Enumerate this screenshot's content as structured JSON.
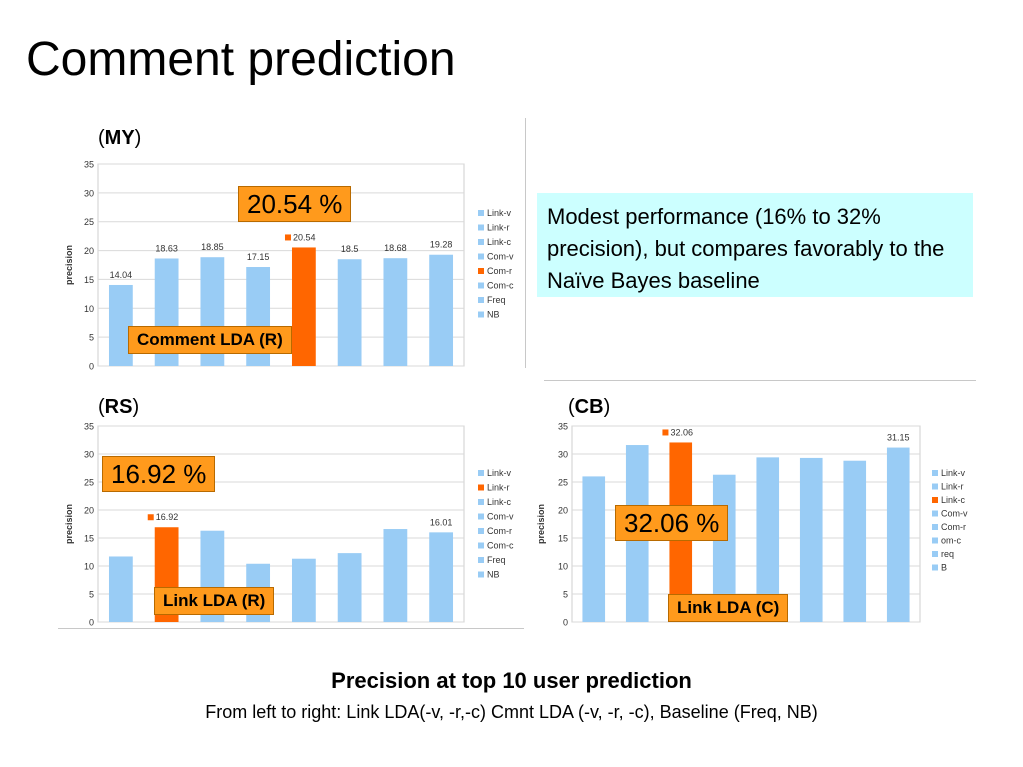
{
  "page": {
    "title": "Comment prediction",
    "callout_note": "Modest performance (16% to 32% precision), but compares favorably to the Naïve Bayes baseline",
    "caption_main": "Precision at top 10 user prediction",
    "caption_sub": "From left to right: Link LDA(-v, -r,-c) Cmnt LDA (-v, -r, -c), Baseline (Freq, NB)"
  },
  "colors": {
    "blue": "#99ccf5",
    "orange": "#ff6600",
    "grid": "#d9d9d9"
  },
  "panels": [
    {
      "key": "MY",
      "paren_open": "(",
      "paren_close": ")",
      "highlight_value": "20.54 %",
      "tag": "Comment LDA (R)"
    },
    {
      "key": "RS",
      "paren_open": "(",
      "paren_close": ")",
      "highlight_value": "16.92 %",
      "tag": "Link LDA (R)"
    },
    {
      "key": "CB",
      "paren_open": "(",
      "paren_close": ")",
      "highlight_value": "32.06 %",
      "tag": "Link LDA (C)"
    }
  ],
  "chart_data": [
    {
      "type": "bar",
      "panel": "MY",
      "ylabel": "precision",
      "ylim": [
        0,
        35
      ],
      "yticks": [
        0,
        5,
        10,
        15,
        20,
        25,
        30,
        35
      ],
      "grid": true,
      "legend_position": "right",
      "categories": [
        "Link-v",
        "Link-r",
        "Link-c",
        "Com-v",
        "Com-r",
        "Com-c",
        "Freq",
        "NB"
      ],
      "values": [
        14.04,
        18.63,
        18.85,
        17.15,
        20.54,
        18.5,
        18.68,
        19.28
      ],
      "data_labels": [
        "14.04",
        "18.63",
        "18.85",
        "17.15",
        "20.54",
        "18.5",
        "18.68",
        "19.28"
      ],
      "highlight_index": 4
    },
    {
      "type": "bar",
      "panel": "RS",
      "ylabel": "precision",
      "ylim": [
        0,
        35
      ],
      "yticks": [
        0,
        5,
        10,
        15,
        20,
        25,
        30,
        35
      ],
      "grid": true,
      "legend_position": "right",
      "categories": [
        "Link-v",
        "Link-r",
        "Link-c",
        "Com-v",
        "Com-r",
        "Com-c",
        "Freq",
        "NB"
      ],
      "values": [
        11.7,
        16.92,
        16.3,
        10.4,
        11.3,
        12.3,
        16.6,
        16.01
      ],
      "data_labels": [
        "",
        "16.92",
        "",
        "",
        "",
        "",
        "",
        "16.01"
      ],
      "highlight_index": 1
    },
    {
      "type": "bar",
      "panel": "CB",
      "ylabel": "precision",
      "ylim": [
        0,
        35
      ],
      "yticks": [
        0,
        5,
        10,
        15,
        20,
        25,
        30,
        35
      ],
      "grid": true,
      "legend_position": "right",
      "categories": [
        "Link-v",
        "Link-r",
        "Link-c",
        "Com-v",
        "Com-r",
        "Com-c",
        "Freq",
        "NB"
      ],
      "values": [
        26.0,
        31.6,
        32.06,
        26.3,
        29.4,
        29.3,
        28.8,
        31.15
      ],
      "data_labels": [
        "",
        "",
        "32.06",
        "",
        "",
        "",
        "",
        "31.15"
      ],
      "legend_labels": [
        "Link-v",
        "Link-r",
        "Link-c",
        "Com-v",
        "Com-r",
        "om-c",
        "req",
        "B"
      ],
      "highlight_index": 2
    }
  ]
}
